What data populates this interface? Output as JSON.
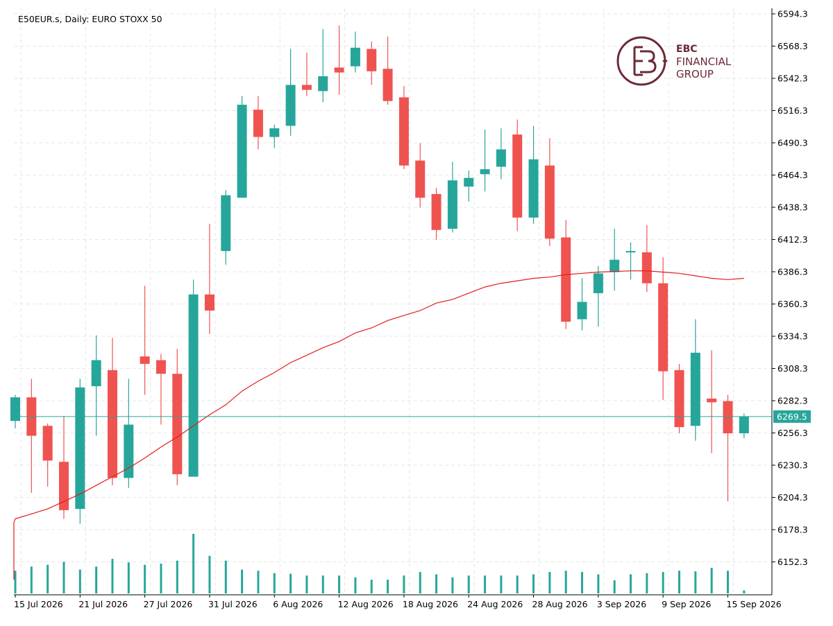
{
  "title": "E50EUR.s, Daily:  EURO STOXX 50",
  "logo": {
    "monogram": "EBC",
    "line1": "EBC",
    "line2": "FINANCIAL",
    "line3": "GROUP",
    "color": "#6b2a36"
  },
  "colors": {
    "bull": "#26a69a",
    "bear": "#ef5350",
    "ma": "#e31a1c",
    "current_line": "#26a69a",
    "volume": "#26a69a",
    "grid": "#e6e6e6",
    "axis": "#000000"
  },
  "chart_data": {
    "type": "candlestick",
    "symbol": "E50EUR.s",
    "timeframe": "Daily",
    "instrument": "EURO STOXX 50",
    "ylim": [
      6127,
      6594.3
    ],
    "y_ticks": [
      6594.3,
      6568.3,
      6542.3,
      6516.3,
      6490.3,
      6464.3,
      6438.3,
      6412.3,
      6386.3,
      6360.3,
      6334.3,
      6308.3,
      6282.3,
      6256.3,
      6230.3,
      6204.3,
      6178.3,
      6152.3
    ],
    "x_labels": [
      {
        "index": 0,
        "label": "15 Jul 2026"
      },
      {
        "index": 4,
        "label": "21 Jul 2026"
      },
      {
        "index": 8,
        "label": "27 Jul 2026"
      },
      {
        "index": 12,
        "label": "31 Jul 2026"
      },
      {
        "index": 16,
        "label": "6 Aug 2026"
      },
      {
        "index": 20,
        "label": "12 Aug 2026"
      },
      {
        "index": 24,
        "label": "18 Aug 2026"
      },
      {
        "index": 28,
        "label": "24 Aug 2026"
      },
      {
        "index": 32,
        "label": "28 Aug 2026"
      },
      {
        "index": 36,
        "label": "3 Sep 2026"
      },
      {
        "index": 40,
        "label": "9 Sep 2026"
      },
      {
        "index": 44,
        "label": "15 Sep 2026"
      }
    ],
    "current_price": 6269.5,
    "candles": [
      {
        "o": 6266,
        "h": 6287,
        "l": 6260,
        "c": 6285
      },
      {
        "o": 6285,
        "h": 6300,
        "l": 6208,
        "c": 6254
      },
      {
        "o": 6262,
        "h": 6264,
        "l": 6213,
        "c": 6234
      },
      {
        "o": 6233,
        "h": 6270,
        "l": 6187,
        "c": 6194
      },
      {
        "o": 6195,
        "h": 6300,
        "l": 6183,
        "c": 6293
      },
      {
        "o": 6294,
        "h": 6335,
        "l": 6254,
        "c": 6315
      },
      {
        "o": 6307,
        "h": 6333,
        "l": 6214,
        "c": 6220
      },
      {
        "o": 6220,
        "h": 6300,
        "l": 6212,
        "c": 6263
      },
      {
        "o": 6318,
        "h": 6375,
        "l": 6287,
        "c": 6312
      },
      {
        "o": 6315,
        "h": 6320,
        "l": 6263,
        "c": 6304
      },
      {
        "o": 6304,
        "h": 6324,
        "l": 6214,
        "c": 6223
      },
      {
        "o": 6221,
        "h": 6380,
        "l": 6221,
        "c": 6368
      },
      {
        "o": 6368,
        "h": 6425,
        "l": 6336,
        "c": 6355
      },
      {
        "o": 6403,
        "h": 6452,
        "l": 6392,
        "c": 6448
      },
      {
        "o": 6446,
        "h": 6528,
        "l": 6446,
        "c": 6521
      },
      {
        "o": 6517,
        "h": 6528,
        "l": 6485,
        "c": 6495
      },
      {
        "o": 6495,
        "h": 6505,
        "l": 6486,
        "c": 6502
      },
      {
        "o": 6504,
        "h": 6566,
        "l": 6496,
        "c": 6537
      },
      {
        "o": 6537,
        "h": 6563,
        "l": 6528,
        "c": 6533
      },
      {
        "o": 6532,
        "h": 6582,
        "l": 6523,
        "c": 6544
      },
      {
        "o": 6551,
        "h": 6585,
        "l": 6529,
        "c": 6547
      },
      {
        "o": 6552,
        "h": 6580,
        "l": 6547,
        "c": 6567
      },
      {
        "o": 6566,
        "h": 6572,
        "l": 6537,
        "c": 6548
      },
      {
        "o": 6550,
        "h": 6576,
        "l": 6521,
        "c": 6524
      },
      {
        "o": 6527,
        "h": 6536,
        "l": 6469,
        "c": 6472
      },
      {
        "o": 6476,
        "h": 6490,
        "l": 6438,
        "c": 6446
      },
      {
        "o": 6449,
        "h": 6454,
        "l": 6412,
        "c": 6420
      },
      {
        "o": 6421,
        "h": 6475,
        "l": 6418,
        "c": 6460
      },
      {
        "o": 6455,
        "h": 6468,
        "l": 6443,
        "c": 6462
      },
      {
        "o": 6465,
        "h": 6501,
        "l": 6451,
        "c": 6469
      },
      {
        "o": 6471,
        "h": 6502,
        "l": 6461,
        "c": 6485
      },
      {
        "o": 6497,
        "h": 6509,
        "l": 6419,
        "c": 6430
      },
      {
        "o": 6430,
        "h": 6504,
        "l": 6425,
        "c": 6477
      },
      {
        "o": 6472,
        "h": 6494,
        "l": 6407,
        "c": 6413
      },
      {
        "o": 6414,
        "h": 6428,
        "l": 6340,
        "c": 6346
      },
      {
        "o": 6348,
        "h": 6381,
        "l": 6339,
        "c": 6362
      },
      {
        "o": 6369,
        "h": 6391,
        "l": 6342,
        "c": 6385
      },
      {
        "o": 6386,
        "h": 6421,
        "l": 6371,
        "c": 6396
      },
      {
        "o": 6403,
        "h": 6410,
        "l": 6380,
        "c": 6403
      },
      {
        "o": 6402,
        "h": 6424,
        "l": 6370,
        "c": 6377
      },
      {
        "o": 6377,
        "h": 6398,
        "l": 6283,
        "c": 6306
      },
      {
        "o": 6307,
        "h": 6312,
        "l": 6256,
        "c": 6261
      },
      {
        "o": 6262,
        "h": 6348,
        "l": 6250,
        "c": 6321
      },
      {
        "o": 6284,
        "h": 6323,
        "l": 6240,
        "c": 6281
      },
      {
        "o": 6282,
        "h": 6287,
        "l": 6201,
        "c": 6256
      },
      {
        "o": 6256,
        "h": 6272,
        "l": 6252,
        "c": 6269.5
      }
    ],
    "ma": [
      6138,
      6141,
      6145,
      6149,
      6156,
      6162,
      6168,
      6175,
      6181,
      6184,
      6187,
      6191,
      6195,
      6201,
      6207,
      6214,
      6221,
      6228,
      6236,
      6245,
      6253,
      6262,
      6271,
      6279,
      6290,
      6298,
      6305,
      6313,
      6319,
      6325,
      6330,
      6337,
      6341,
      6347,
      6351,
      6355,
      6361,
      6364,
      6369,
      6374,
      6377,
      6379,
      6381,
      6382,
      6384,
      6385,
      6386,
      6386.5,
      6387,
      6387,
      6386,
      6385,
      6383,
      6381,
      6380,
      6381
    ],
    "ma_x_start": -10,
    "volume_rel": [
      0.38,
      0.45,
      0.48,
      0.53,
      0.4,
      0.45,
      0.58,
      0.52,
      0.48,
      0.5,
      0.55,
      1.0,
      0.63,
      0.55,
      0.4,
      0.38,
      0.34,
      0.33,
      0.3,
      0.3,
      0.3,
      0.27,
      0.23,
      0.23,
      0.3,
      0.36,
      0.32,
      0.27,
      0.3,
      0.3,
      0.3,
      0.3,
      0.32,
      0.36,
      0.38,
      0.36,
      0.32,
      0.22,
      0.32,
      0.34,
      0.36,
      0.38,
      0.37,
      0.43,
      0.38,
      0.05
    ]
  }
}
